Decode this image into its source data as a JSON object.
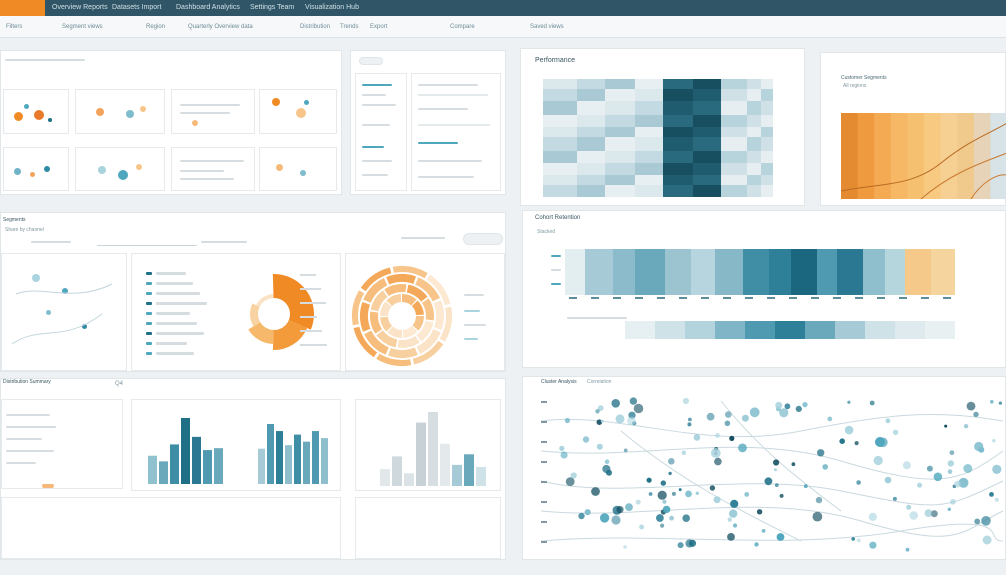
{
  "topbar": {
    "nav": [
      "Overview Reports",
      "Datasets Import",
      "Dashboard Analytics",
      "Settings Team",
      "Visualization Hub"
    ]
  },
  "subbar": {
    "items": [
      "Filters",
      "Segment views",
      "Region",
      "Quarterly Overview data",
      "Distribution",
      "Trends",
      "Export",
      "Compare",
      "Saved views"
    ]
  },
  "panels": {
    "heatmap": {
      "title": "Performance"
    },
    "orange": {
      "title": "Customer Segments",
      "sub": "All regions"
    },
    "stripes": {
      "title": "Cohort Retention",
      "sub": "Stacked"
    },
    "donut": {
      "title": "Segments",
      "sub": "Share by channel"
    },
    "scatter": {
      "title": "Cluster Analysis",
      "sub": "Correlation"
    },
    "bars": {
      "title": "Distribution Summary",
      "badge": "Q4"
    }
  },
  "colors": {
    "accent": "#f08a24",
    "primary": "#1f6f86",
    "teal": "#4fa7bd",
    "light_teal": "#a9d3de",
    "peach": "#f7c58a"
  },
  "icons": [
    "menu-icon",
    "search-icon",
    "filter-icon",
    "gear-icon"
  ]
}
